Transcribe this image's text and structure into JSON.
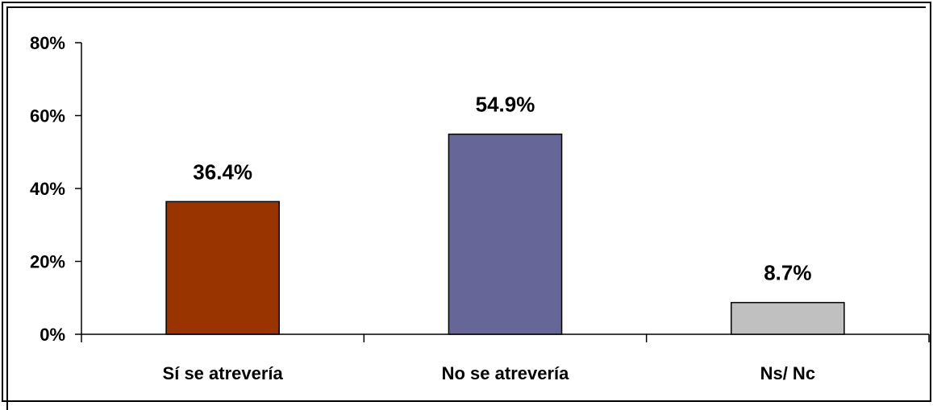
{
  "chart_data": {
    "type": "bar",
    "categories": [
      "Sí se atrevería",
      "No se atrevería",
      "Ns/ Nc"
    ],
    "values": [
      36.4,
      54.9,
      8.7
    ],
    "data_labels": [
      "36.4%",
      "54.9%",
      "8.7%"
    ],
    "colors": [
      "#993300",
      "#666699",
      "#C0C0C0"
    ],
    "ylim": [
      0,
      80
    ],
    "yticks": [
      0,
      20,
      40,
      60,
      80
    ],
    "ytick_labels": [
      "0%",
      "20%",
      "40%",
      "60%",
      "80%"
    ],
    "grid": false,
    "legend": "none",
    "title": "",
    "xlabel": "",
    "ylabel": ""
  }
}
